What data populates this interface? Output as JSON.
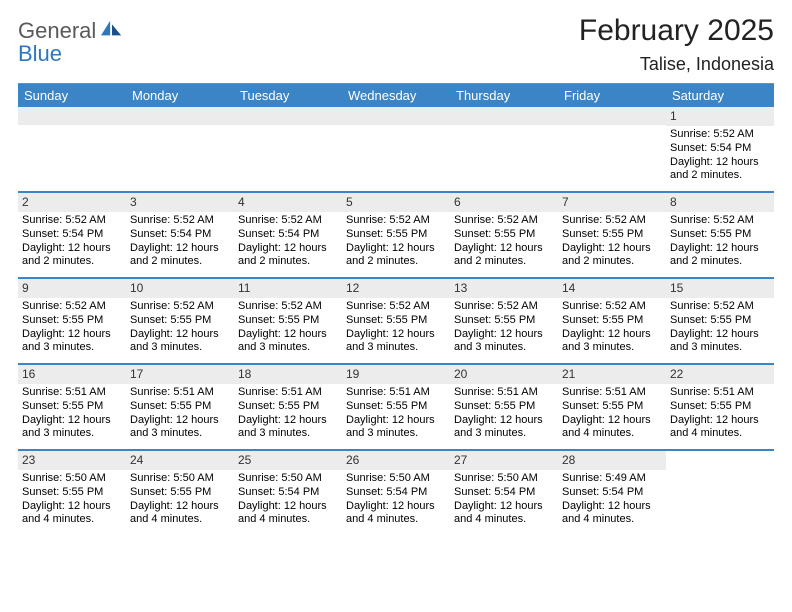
{
  "logo": {
    "general": "General",
    "blue": "Blue"
  },
  "title": "February 2025",
  "location": "Talise, Indonesia",
  "header_bg": "#3b85c6",
  "header_fg": "#ffffff",
  "daynum_bg": "#ececec",
  "divider_color": "#3b85c6",
  "day_names": [
    "Sunday",
    "Monday",
    "Tuesday",
    "Wednesday",
    "Thursday",
    "Friday",
    "Saturday"
  ],
  "weeks": [
    [
      {
        "n": "",
        "empty": true
      },
      {
        "n": "",
        "empty": true
      },
      {
        "n": "",
        "empty": true
      },
      {
        "n": "",
        "empty": true
      },
      {
        "n": "",
        "empty": true
      },
      {
        "n": "",
        "empty": true
      },
      {
        "n": "1",
        "sr": "Sunrise: 5:52 AM",
        "ss": "Sunset: 5:54 PM",
        "dl": "Daylight: 12 hours and 2 minutes."
      }
    ],
    [
      {
        "n": "2",
        "sr": "Sunrise: 5:52 AM",
        "ss": "Sunset: 5:54 PM",
        "dl": "Daylight: 12 hours and 2 minutes."
      },
      {
        "n": "3",
        "sr": "Sunrise: 5:52 AM",
        "ss": "Sunset: 5:54 PM",
        "dl": "Daylight: 12 hours and 2 minutes."
      },
      {
        "n": "4",
        "sr": "Sunrise: 5:52 AM",
        "ss": "Sunset: 5:54 PM",
        "dl": "Daylight: 12 hours and 2 minutes."
      },
      {
        "n": "5",
        "sr": "Sunrise: 5:52 AM",
        "ss": "Sunset: 5:55 PM",
        "dl": "Daylight: 12 hours and 2 minutes."
      },
      {
        "n": "6",
        "sr": "Sunrise: 5:52 AM",
        "ss": "Sunset: 5:55 PM",
        "dl": "Daylight: 12 hours and 2 minutes."
      },
      {
        "n": "7",
        "sr": "Sunrise: 5:52 AM",
        "ss": "Sunset: 5:55 PM",
        "dl": "Daylight: 12 hours and 2 minutes."
      },
      {
        "n": "8",
        "sr": "Sunrise: 5:52 AM",
        "ss": "Sunset: 5:55 PM",
        "dl": "Daylight: 12 hours and 2 minutes."
      }
    ],
    [
      {
        "n": "9",
        "sr": "Sunrise: 5:52 AM",
        "ss": "Sunset: 5:55 PM",
        "dl": "Daylight: 12 hours and 3 minutes."
      },
      {
        "n": "10",
        "sr": "Sunrise: 5:52 AM",
        "ss": "Sunset: 5:55 PM",
        "dl": "Daylight: 12 hours and 3 minutes."
      },
      {
        "n": "11",
        "sr": "Sunrise: 5:52 AM",
        "ss": "Sunset: 5:55 PM",
        "dl": "Daylight: 12 hours and 3 minutes."
      },
      {
        "n": "12",
        "sr": "Sunrise: 5:52 AM",
        "ss": "Sunset: 5:55 PM",
        "dl": "Daylight: 12 hours and 3 minutes."
      },
      {
        "n": "13",
        "sr": "Sunrise: 5:52 AM",
        "ss": "Sunset: 5:55 PM",
        "dl": "Daylight: 12 hours and 3 minutes."
      },
      {
        "n": "14",
        "sr": "Sunrise: 5:52 AM",
        "ss": "Sunset: 5:55 PM",
        "dl": "Daylight: 12 hours and 3 minutes."
      },
      {
        "n": "15",
        "sr": "Sunrise: 5:52 AM",
        "ss": "Sunset: 5:55 PM",
        "dl": "Daylight: 12 hours and 3 minutes."
      }
    ],
    [
      {
        "n": "16",
        "sr": "Sunrise: 5:51 AM",
        "ss": "Sunset: 5:55 PM",
        "dl": "Daylight: 12 hours and 3 minutes."
      },
      {
        "n": "17",
        "sr": "Sunrise: 5:51 AM",
        "ss": "Sunset: 5:55 PM",
        "dl": "Daylight: 12 hours and 3 minutes."
      },
      {
        "n": "18",
        "sr": "Sunrise: 5:51 AM",
        "ss": "Sunset: 5:55 PM",
        "dl": "Daylight: 12 hours and 3 minutes."
      },
      {
        "n": "19",
        "sr": "Sunrise: 5:51 AM",
        "ss": "Sunset: 5:55 PM",
        "dl": "Daylight: 12 hours and 3 minutes."
      },
      {
        "n": "20",
        "sr": "Sunrise: 5:51 AM",
        "ss": "Sunset: 5:55 PM",
        "dl": "Daylight: 12 hours and 3 minutes."
      },
      {
        "n": "21",
        "sr": "Sunrise: 5:51 AM",
        "ss": "Sunset: 5:55 PM",
        "dl": "Daylight: 12 hours and 4 minutes."
      },
      {
        "n": "22",
        "sr": "Sunrise: 5:51 AM",
        "ss": "Sunset: 5:55 PM",
        "dl": "Daylight: 12 hours and 4 minutes."
      }
    ],
    [
      {
        "n": "23",
        "sr": "Sunrise: 5:50 AM",
        "ss": "Sunset: 5:55 PM",
        "dl": "Daylight: 12 hours and 4 minutes."
      },
      {
        "n": "24",
        "sr": "Sunrise: 5:50 AM",
        "ss": "Sunset: 5:55 PM",
        "dl": "Daylight: 12 hours and 4 minutes."
      },
      {
        "n": "25",
        "sr": "Sunrise: 5:50 AM",
        "ss": "Sunset: 5:54 PM",
        "dl": "Daylight: 12 hours and 4 minutes."
      },
      {
        "n": "26",
        "sr": "Sunrise: 5:50 AM",
        "ss": "Sunset: 5:54 PM",
        "dl": "Daylight: 12 hours and 4 minutes."
      },
      {
        "n": "27",
        "sr": "Sunrise: 5:50 AM",
        "ss": "Sunset: 5:54 PM",
        "dl": "Daylight: 12 hours and 4 minutes."
      },
      {
        "n": "28",
        "sr": "Sunrise: 5:49 AM",
        "ss": "Sunset: 5:54 PM",
        "dl": "Daylight: 12 hours and 4 minutes."
      },
      {
        "n": "",
        "empty": true,
        "noshade": true
      }
    ]
  ]
}
